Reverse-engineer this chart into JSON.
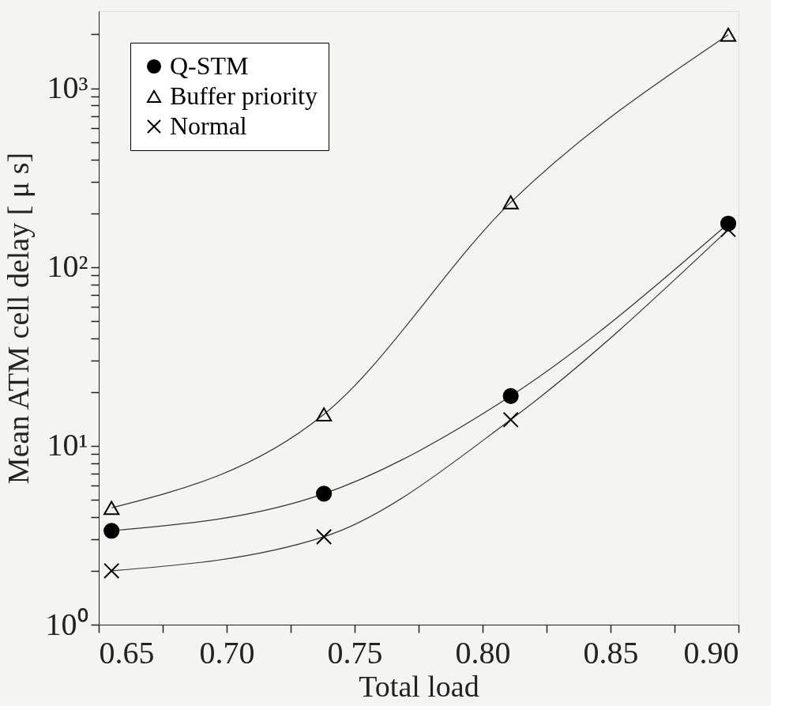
{
  "chart_data": {
    "type": "line",
    "xlabel": "Total load",
    "ylabel": "Mean ATM cell delay [ μ s]",
    "xlim": [
      0.65,
      0.9
    ],
    "xticks": [
      {
        "value": 0.65,
        "label": "0.65"
      },
      {
        "value": 0.675,
        "label": null
      },
      {
        "value": 0.7,
        "label": "0.70"
      },
      {
        "value": 0.725,
        "label": null
      },
      {
        "value": 0.75,
        "label": "0.75"
      },
      {
        "value": 0.775,
        "label": null
      },
      {
        "value": 0.8,
        "label": "0.80"
      },
      {
        "value": 0.825,
        "label": null
      },
      {
        "value": 0.85,
        "label": "0.85"
      },
      {
        "value": 0.875,
        "label": null
      },
      {
        "value": 0.9,
        "label": "0.90"
      }
    ],
    "ylim": [
      1,
      2700
    ],
    "log": "y",
    "yticks": [
      {
        "value": 1,
        "label": "10⁰"
      },
      {
        "value": 2,
        "label": null
      },
      {
        "value": 3,
        "label": null
      },
      {
        "value": 4,
        "label": null
      },
      {
        "value": 5,
        "label": null
      },
      {
        "value": 6,
        "label": null
      },
      {
        "value": 7,
        "label": null
      },
      {
        "value": 8,
        "label": null
      },
      {
        "value": 9,
        "label": null
      },
      {
        "value": 10,
        "label": "10¹"
      },
      {
        "value": 20,
        "label": null
      },
      {
        "value": 30,
        "label": null
      },
      {
        "value": 40,
        "label": null
      },
      {
        "value": 50,
        "label": null
      },
      {
        "value": 60,
        "label": null
      },
      {
        "value": 70,
        "label": null
      },
      {
        "value": 80,
        "label": null
      },
      {
        "value": 90,
        "label": null
      },
      {
        "value": 100,
        "label": "10²"
      },
      {
        "value": 200,
        "label": null
      },
      {
        "value": 300,
        "label": null
      },
      {
        "value": 400,
        "label": null
      },
      {
        "value": 500,
        "label": null
      },
      {
        "value": 600,
        "label": null
      },
      {
        "value": 700,
        "label": null
      },
      {
        "value": 800,
        "label": null
      },
      {
        "value": 900,
        "label": null
      },
      {
        "value": 1000,
        "label": "10³"
      },
      {
        "value": 2000,
        "label": null
      }
    ],
    "x": [
      0.655,
      0.738,
      0.811,
      0.896
    ],
    "grid": false,
    "legend": "top left",
    "line_style": "solid",
    "series": [
      {
        "name": "Q-STM",
        "color": "#000000",
        "marker": "circle",
        "values": [
          3.35,
          5.4,
          19,
          175
        ]
      },
      {
        "name": "Buffer priority",
        "color": "#000000",
        "marker": "triangle",
        "values": [
          4.5,
          15,
          230,
          1990
        ]
      },
      {
        "name": "Normal",
        "color": "#000000",
        "marker": "cross",
        "values": [
          2.0,
          3.1,
          14,
          162
        ]
      }
    ]
  }
}
